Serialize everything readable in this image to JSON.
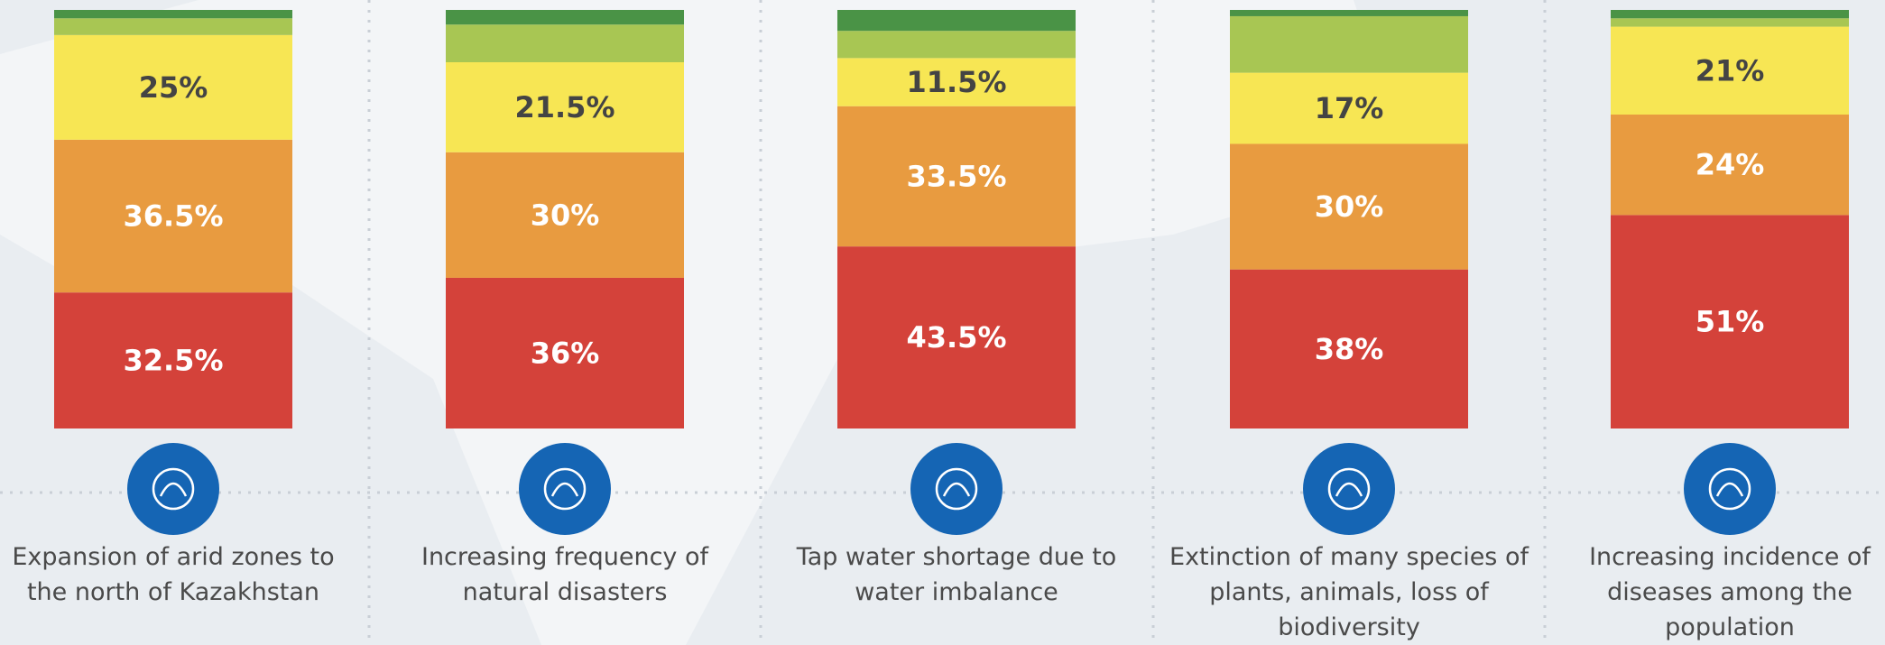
{
  "chart_data": {
    "type": "stacked-bar",
    "categories": [
      "Expansion of arid zones to the north of Kazakhstan",
      "Increasing frequency of natural disasters",
      "Tap water shortage due to water imbalance",
      "Extinction of many species of plants, animals, loss of biodiversity",
      "Increasing incidence of diseases among the population"
    ],
    "series": [
      {
        "color": "#d4423a",
        "values": [
          32.5,
          36,
          43.5,
          38,
          51
        ],
        "value_labels": [
          "32.5%",
          "36%",
          "43.5%",
          "38%",
          "51%"
        ]
      },
      {
        "color": "#e89b40",
        "values": [
          36.5,
          30,
          33.5,
          30,
          24
        ],
        "value_labels": [
          "36.5%",
          "30%",
          "33.5%",
          "30%",
          "24%"
        ]
      },
      {
        "color": "#f7e654",
        "values": [
          25,
          21.5,
          11.5,
          17,
          21
        ],
        "value_labels": [
          "25%",
          "21.5%",
          "11.5%",
          "17%",
          "21%"
        ]
      },
      {
        "color": "#a8c653",
        "values": [
          4,
          9,
          6.5,
          13.5,
          2
        ],
        "value_labels": [
          null,
          null,
          null,
          null,
          null
        ]
      },
      {
        "color": "#4a9346",
        "values": [
          2,
          3.5,
          5,
          1.5,
          2
        ],
        "value_labels": [
          null,
          null,
          null,
          null,
          null
        ]
      }
    ]
  }
}
